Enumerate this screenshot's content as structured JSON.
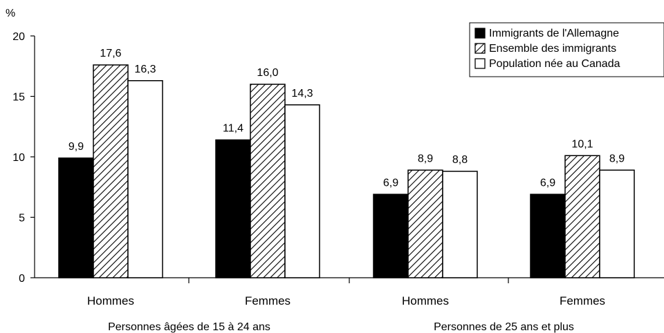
{
  "chart_data": {
    "type": "bar",
    "title": "",
    "unit": "%",
    "xlabel": "",
    "ylabel": "",
    "ylim": [
      0,
      20
    ],
    "yticks": [
      "0",
      "5",
      "10",
      "15",
      "20"
    ],
    "grid": false,
    "legend_position": "top-right",
    "groups": [
      {
        "label": "Personnes âgées de 15 à 24 ans",
        "categories": [
          "Hommes",
          "Femmes"
        ]
      },
      {
        "label": "Personnes de 25 ans et plus",
        "categories": [
          "Hommes",
          "Femmes"
        ]
      }
    ],
    "series": [
      {
        "name": "Immigrants de l'Allemagne",
        "fill": "solid",
        "color": "#000000",
        "values": [
          9.9,
          11.4,
          6.9,
          6.9
        ],
        "labels": [
          "9,9",
          "11,4",
          "6,9",
          "6,9"
        ]
      },
      {
        "name": "Ensemble des immigrants",
        "fill": "hatched",
        "color": "#000000",
        "values": [
          17.6,
          16.0,
          8.9,
          10.1
        ],
        "labels": [
          "17,6",
          "16,0",
          "8,9",
          "10,1"
        ]
      },
      {
        "name": "Population née au Canada",
        "fill": "empty",
        "color": "#ffffff",
        "values": [
          16.3,
          14.3,
          8.8,
          8.9
        ],
        "labels": [
          "16,3",
          "14,3",
          "8,8",
          "8,9"
        ]
      }
    ]
  }
}
